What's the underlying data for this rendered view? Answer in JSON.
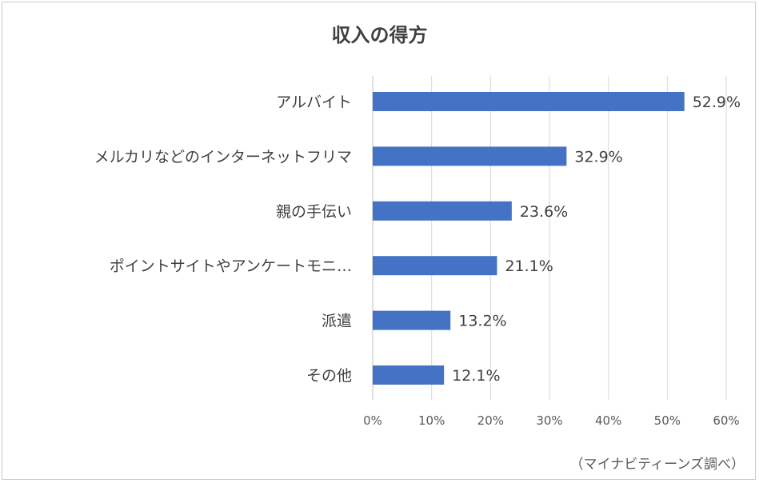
{
  "chart_data": {
    "type": "bar",
    "orientation": "horizontal",
    "title": "収入の得方",
    "categories": [
      "アルバイト",
      "メルカリなどのインターネットフリマ",
      "親の手伝い",
      "ポイントサイトやアンケートモニ…",
      "派遣",
      "その他"
    ],
    "values": [
      52.9,
      32.9,
      23.6,
      21.1,
      13.2,
      12.1
    ],
    "value_labels": [
      "52.9%",
      "32.9%",
      "23.6%",
      "21.1%",
      "13.2%",
      "12.1%"
    ],
    "xlim": [
      0,
      60
    ],
    "xticks": [
      0,
      10,
      20,
      30,
      40,
      50,
      60
    ],
    "xtick_labels": [
      "0%",
      "10%",
      "20%",
      "30%",
      "40%",
      "50%",
      "60%"
    ],
    "grid": "vertical",
    "bar_color": "#4472C4",
    "grid_color": "#d9d9d9"
  },
  "source_note": "（マイナビティーンズ調べ）"
}
